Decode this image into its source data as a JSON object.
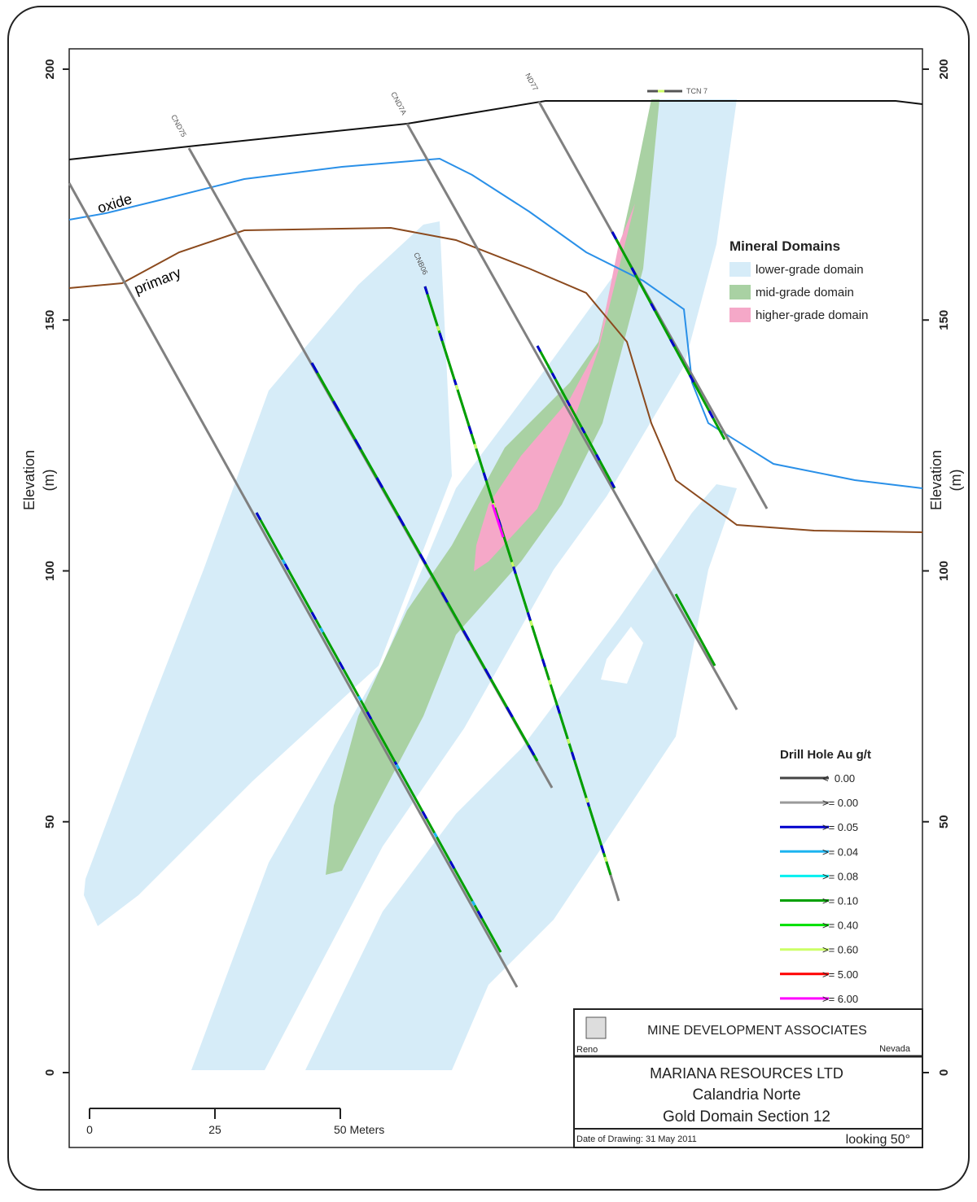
{
  "axes": {
    "title": "Elevation",
    "unit": "(m)",
    "ticks": [
      0,
      50,
      100,
      150,
      200
    ]
  },
  "surface_labels": [
    "oxide",
    "primary"
  ],
  "drill_holes": [
    "CND75",
    "CND7A",
    "CNB06",
    "ND77",
    "TCN 7"
  ],
  "mineral_domains": {
    "title": "Mineral Domains",
    "items": [
      {
        "label": "lower-grade domain",
        "color": "#d6ecf8"
      },
      {
        "label": "mid-grade domain",
        "color": "#a9d1a3"
      },
      {
        "label": "higher-grade domain",
        "color": "#f5a8c8"
      }
    ]
  },
  "drill_hole_legend": {
    "title": "Drill Hole Au g/t",
    "items": [
      {
        "label": "<  0.00",
        "color": "#444444"
      },
      {
        "label": ">= 0.00",
        "color": "#9a9a9a"
      },
      {
        "label": ">= 0.05",
        "color": "#0000cc"
      },
      {
        "label": ">= 0.04",
        "color": "#1cb4f0"
      },
      {
        "label": ">= 0.08",
        "color": "#00f0f0"
      },
      {
        "label": ">= 0.10",
        "color": "#00a000"
      },
      {
        "label": ">= 0.40",
        "color": "#00e000"
      },
      {
        "label": ">= 0.60",
        "color": "#ccff66"
      },
      {
        "label": ">= 5.00",
        "color": "#ff0000"
      },
      {
        "label": ">= 6.00",
        "color": "#ff00ff"
      }
    ]
  },
  "scale_bar": [
    "0",
    "25",
    "50 Meters"
  ],
  "title_block": {
    "company": "MINE DEVELOPMENT ASSOCIATES",
    "city": "Reno",
    "state": "Nevada",
    "client": "MARIANA RESOURCES LTD",
    "project": "Calandria Norte",
    "section": "Gold Domain Section 12",
    "date": "Date of Drawing: 31 May 2011",
    "view": "looking 50°"
  }
}
